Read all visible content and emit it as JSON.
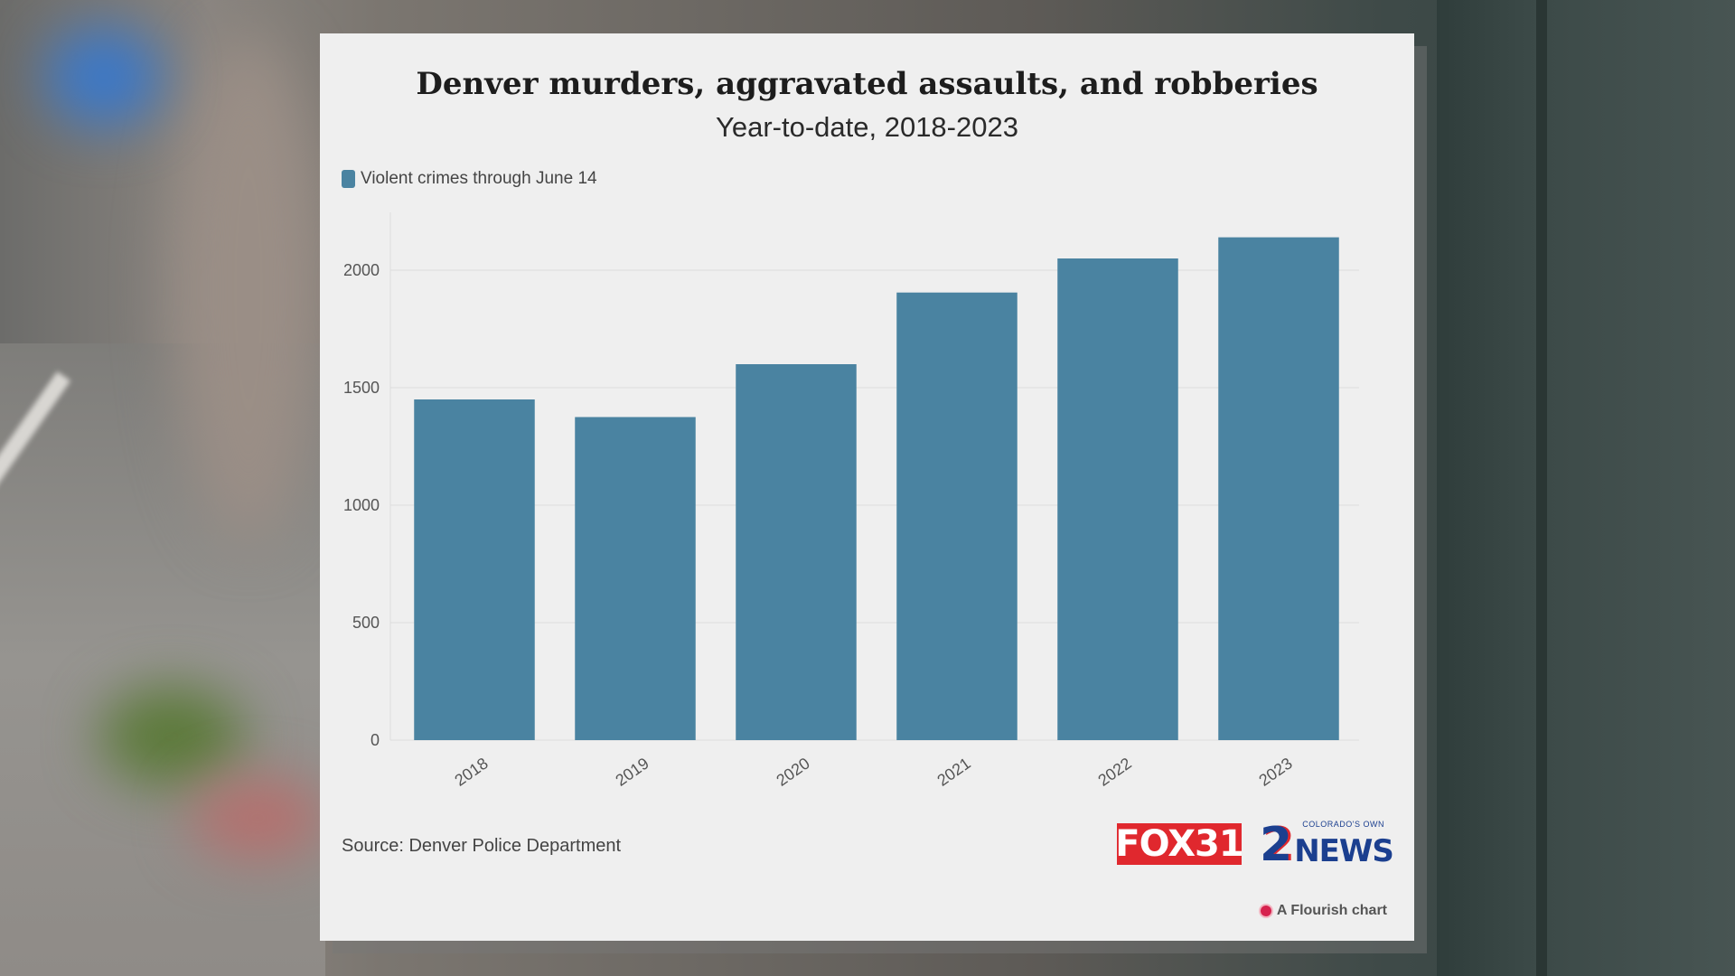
{
  "logos": {
    "fox": "FOX31",
    "news_number": "2",
    "news_word": "NEWS",
    "news_tagline": "COLORADO'S OWN"
  },
  "attribution": "A Flourish chart",
  "colors": {
    "bar": "#4a83a1",
    "background": "#efefef",
    "flourish_dot": "#d6224e"
  },
  "chart_data": {
    "type": "bar",
    "title": "Denver murders, aggravated assaults, and robberies",
    "subtitle": "Year-to-date, 2018-2023",
    "legend": "Violent crimes through June 14",
    "legend_position": "top-left",
    "source": "Source: Denver Police Department",
    "categories": [
      "2018",
      "2019",
      "2020",
      "2021",
      "2022",
      "2023"
    ],
    "series": [
      {
        "name": "Violent crimes through June 14",
        "values": [
          1450,
          1375,
          1600,
          1905,
          2050,
          2140
        ]
      }
    ],
    "ylim": [
      0,
      2200
    ],
    "yticks": [
      0,
      500,
      1000,
      1500,
      2000
    ],
    "grid": true
  }
}
